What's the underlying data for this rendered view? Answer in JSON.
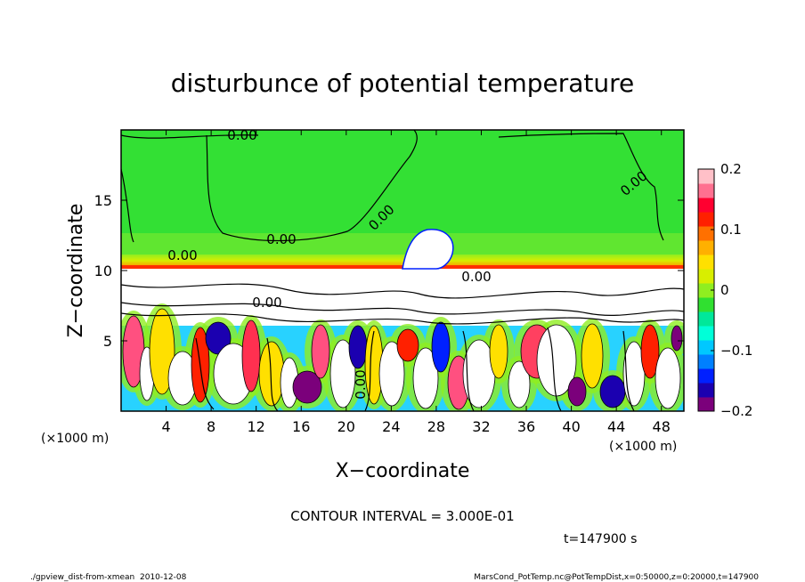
{
  "chart_data": {
    "type": "heatmap",
    "title": "disturbunce of potential temperature",
    "xlabel": "X−coordinate",
    "ylabel": "Z−coordinate",
    "x_unit_left": "(×1000 m)",
    "x_unit_right": "(×1000 m)",
    "xlim": [
      0,
      50
    ],
    "ylim": [
      0,
      20
    ],
    "xticks": [
      4,
      8,
      12,
      16,
      20,
      24,
      28,
      32,
      36,
      40,
      44,
      48
    ],
    "yticks": [
      5,
      10,
      15
    ],
    "colorbar": {
      "vmin": -0.2,
      "vmax": 0.2,
      "ticks": [
        0.2,
        0.1,
        0,
        -0.1,
        -0.2
      ],
      "tick_labels": [
        "0.2",
        "0.1",
        "0",
        "−0.1",
        "−0.2"
      ],
      "colors": [
        "#7b007b",
        "#1b00b0",
        "#0020ff",
        "#0080ff",
        "#00c8ff",
        "#00ffd8",
        "#00e89a",
        "#30e030",
        "#90ee20",
        "#d8ee00",
        "#ffe000",
        "#ffb000",
        "#ff7000",
        "#ff2000",
        "#ff0030",
        "#ff7090",
        "#ffc0c8"
      ]
    },
    "contour_labels": [
      "0.00",
      "0.00",
      "0.00",
      "0.00",
      "0.00",
      "0.00",
      "0.00",
      "0.00"
    ],
    "contour_interval": "CONTOUR INTERVAL = 3.000E-01",
    "time": "t=147900 s"
  },
  "footer": {
    "left": "./gpview_dist-from-xmean  2010-12-08",
    "right": "MarsCond_PotTemp.nc@PotTempDist,x=0:50000,z=0:20000,t=147900"
  }
}
